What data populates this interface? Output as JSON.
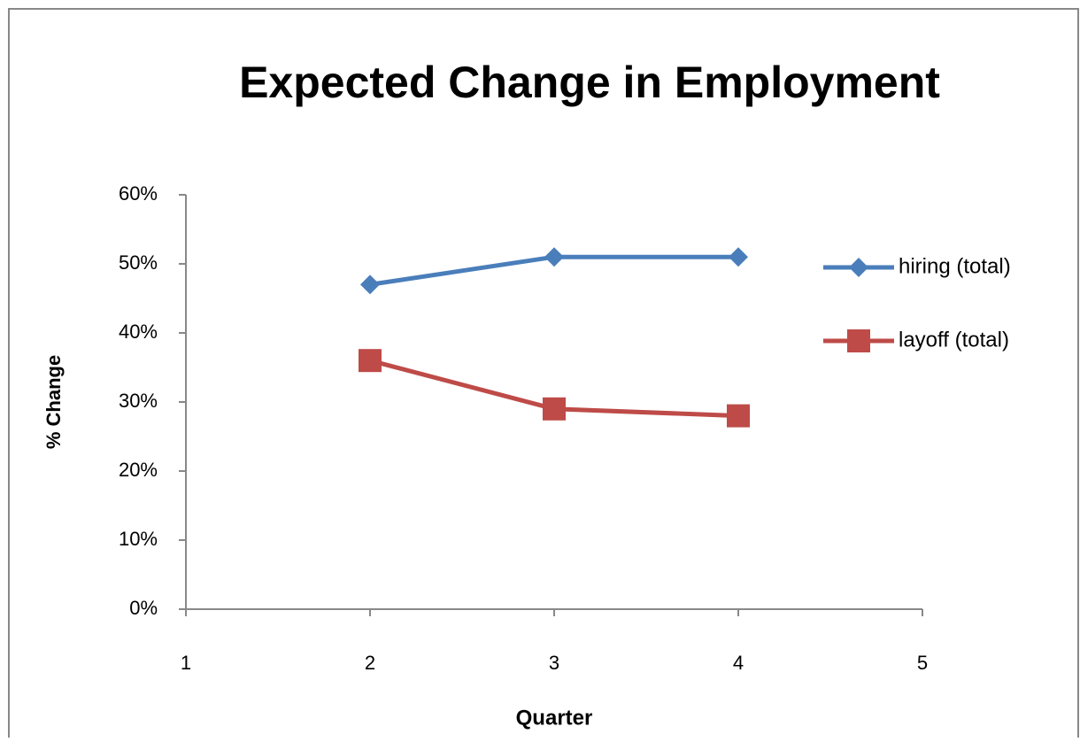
{
  "chart_data": {
    "type": "line",
    "title": "Expected Change in Employment",
    "x_label": "Quarter",
    "y_label": "% Change",
    "x": [
      2,
      3,
      4
    ],
    "series": [
      {
        "name": "hiring (total)",
        "color": "#4a7ebb",
        "marker": "diamond",
        "values": [
          47,
          51,
          51
        ]
      },
      {
        "name": "layoff (total)",
        "color": "#be4b48",
        "marker": "square",
        "values": [
          36,
          29,
          28
        ]
      }
    ],
    "xlim": [
      1,
      5
    ],
    "xticks": [
      1,
      2,
      3,
      4,
      5
    ],
    "ylim": [
      0,
      60
    ],
    "yticks": [
      {
        "value": 0,
        "label": "0%"
      },
      {
        "value": 10,
        "label": "10%"
      },
      {
        "value": 20,
        "label": "20%"
      },
      {
        "value": 30,
        "label": "30%"
      },
      {
        "value": 40,
        "label": "40%"
      },
      {
        "value": 50,
        "label": "50%"
      },
      {
        "value": 60,
        "label": "60%"
      }
    ],
    "grid": false,
    "legend": "right"
  }
}
